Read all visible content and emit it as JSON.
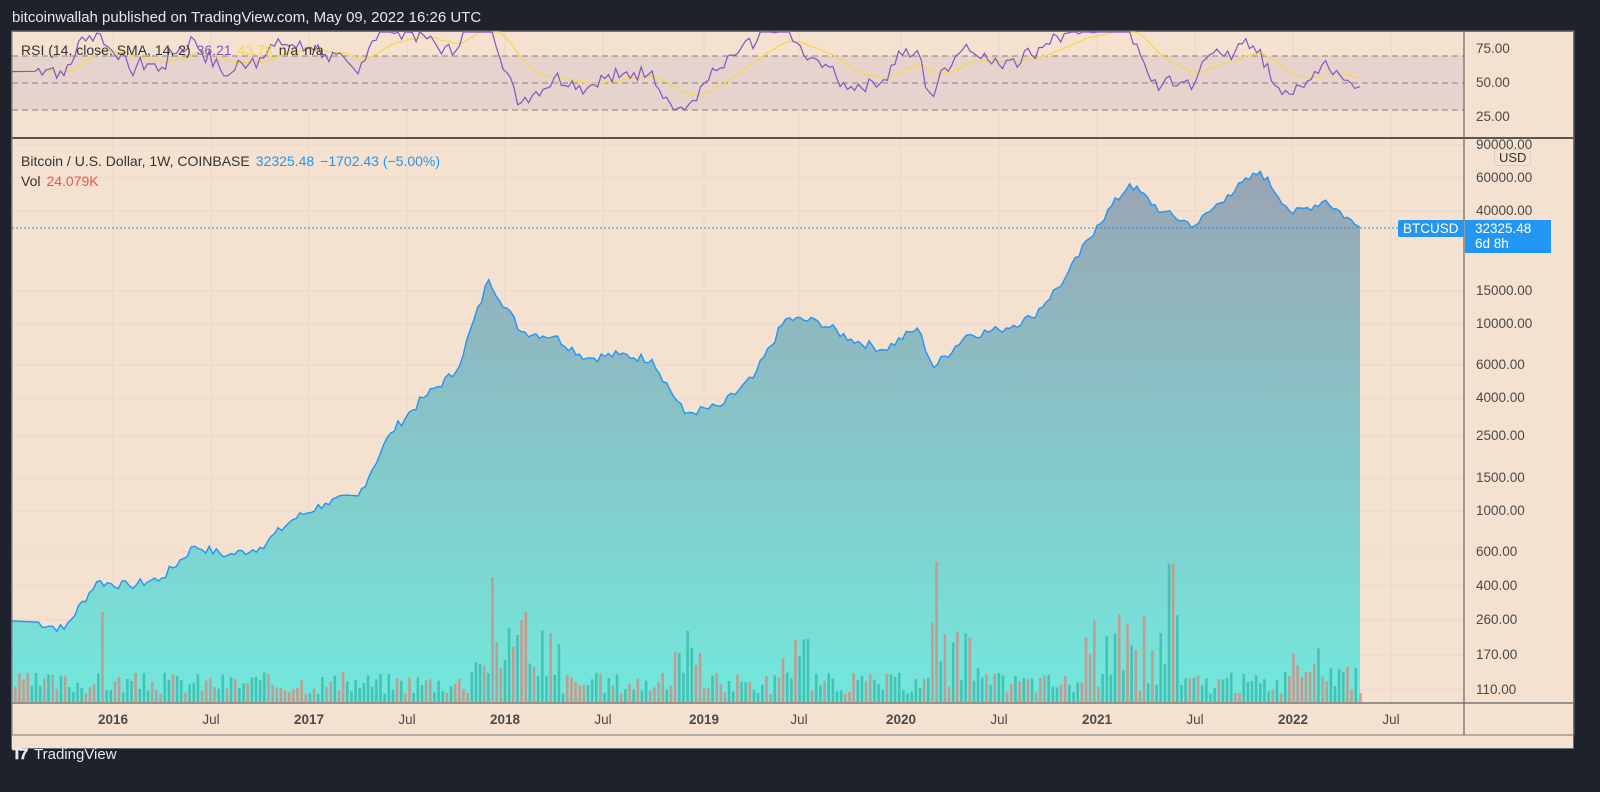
{
  "header": {
    "published": "bitcoinwallah published on TradingView.com, May 09, 2022 16:26 UTC"
  },
  "rsi_legend": {
    "label": "RSI (14, close, SMA, 14, 2)",
    "rsi_value": "36.21",
    "sma_value": "43.78",
    "na1": "n/a",
    "na2": "n/a"
  },
  "price_legend": {
    "symbol": "Bitcoin / U.S. Dollar, 1W, COINBASE",
    "last": "32325.48",
    "change": "−1702.43 (−5.00%)"
  },
  "vol_legend": {
    "label": "Vol",
    "value": "24.079K"
  },
  "rsi_axis": [
    "75.00",
    "50.00",
    "25.00"
  ],
  "price_axis": [
    "90000.00",
    "60000.00",
    "40000.00",
    "15000.00",
    "10000.00",
    "6000.00",
    "4000.00",
    "2500.00",
    "1500.00",
    "1000.00",
    "600.00",
    "400.00",
    "260.00",
    "170.00",
    "110.00"
  ],
  "currency_badge": "USD",
  "symbol_tag": "BTCUSD",
  "price_tag": {
    "price": "32325.48",
    "countdown": "6d 8h"
  },
  "time_axis": [
    {
      "label": "2016",
      "year": true
    },
    {
      "label": "Jul",
      "year": false
    },
    {
      "label": "2017",
      "year": true
    },
    {
      "label": "Jul",
      "year": false
    },
    {
      "label": "2018",
      "year": true
    },
    {
      "label": "Jul",
      "year": false
    },
    {
      "label": "2019",
      "year": true
    },
    {
      "label": "Jul",
      "year": false
    },
    {
      "label": "2020",
      "year": true
    },
    {
      "label": "Jul",
      "year": false
    },
    {
      "label": "2021",
      "year": true
    },
    {
      "label": "Jul",
      "year": false
    },
    {
      "label": "2022",
      "year": true
    },
    {
      "label": "Jul",
      "year": false
    }
  ],
  "footer": {
    "brand": "TradingView"
  },
  "colors": {
    "background": "#f4e1d0",
    "frame": "#1e222d",
    "price_line": "#2196f3",
    "area_top": "#9aa4b4",
    "area_bottom": "#72e8dc",
    "vol_up": "#3fbfb0",
    "vol_down": "#c9958a",
    "rsi_line": "#7e57c2",
    "rsi_sma": "#f5d94a",
    "rsi_band": "#e3d0cc"
  },
  "chart_data": [
    {
      "type": "area",
      "title": "Bitcoin / U.S. Dollar, 1W, COINBASE",
      "scale": "log",
      "ylabel": "USD",
      "ylim": [
        100,
        90000
      ],
      "x": [
        "2015-08",
        "2015-10",
        "2015-12",
        "2016-02",
        "2016-04",
        "2016-06",
        "2016-08",
        "2016-10",
        "2016-12",
        "2017-02",
        "2017-04",
        "2017-06",
        "2017-08",
        "2017-10",
        "2017-12",
        "2018-02",
        "2018-04",
        "2018-06",
        "2018-08",
        "2018-10",
        "2018-12",
        "2019-02",
        "2019-04",
        "2019-06",
        "2019-08",
        "2019-10",
        "2019-12",
        "2020-02",
        "2020-03",
        "2020-05",
        "2020-07",
        "2020-09",
        "2020-11",
        "2021-01",
        "2021-03",
        "2021-05",
        "2021-07",
        "2021-09",
        "2021-11",
        "2022-01",
        "2022-03",
        "2022-05"
      ],
      "values": [
        260,
        235,
        420,
        400,
        440,
        650,
        580,
        640,
        900,
        1100,
        1200,
        2600,
        4000,
        5500,
        17000,
        9000,
        8500,
        6500,
        6800,
        6400,
        3300,
        3600,
        5100,
        10500,
        10200,
        8200,
        7200,
        9400,
        5800,
        8600,
        9200,
        10700,
        17000,
        33000,
        55000,
        39000,
        33000,
        48000,
        64000,
        38000,
        45000,
        32325
      ],
      "last_value": 32325.48,
      "change": -1702.43,
      "change_pct": -5.0
    },
    {
      "type": "line",
      "title": "RSI (14, close, SMA, 14, 2)",
      "ylim": [
        0,
        100
      ],
      "bands": [
        30,
        50,
        70
      ],
      "series": [
        {
          "name": "RSI",
          "last": 36.21
        },
        {
          "name": "SMA",
          "last": 43.78
        }
      ]
    },
    {
      "type": "bar",
      "title": "Vol",
      "last_value": "24.079K"
    }
  ]
}
